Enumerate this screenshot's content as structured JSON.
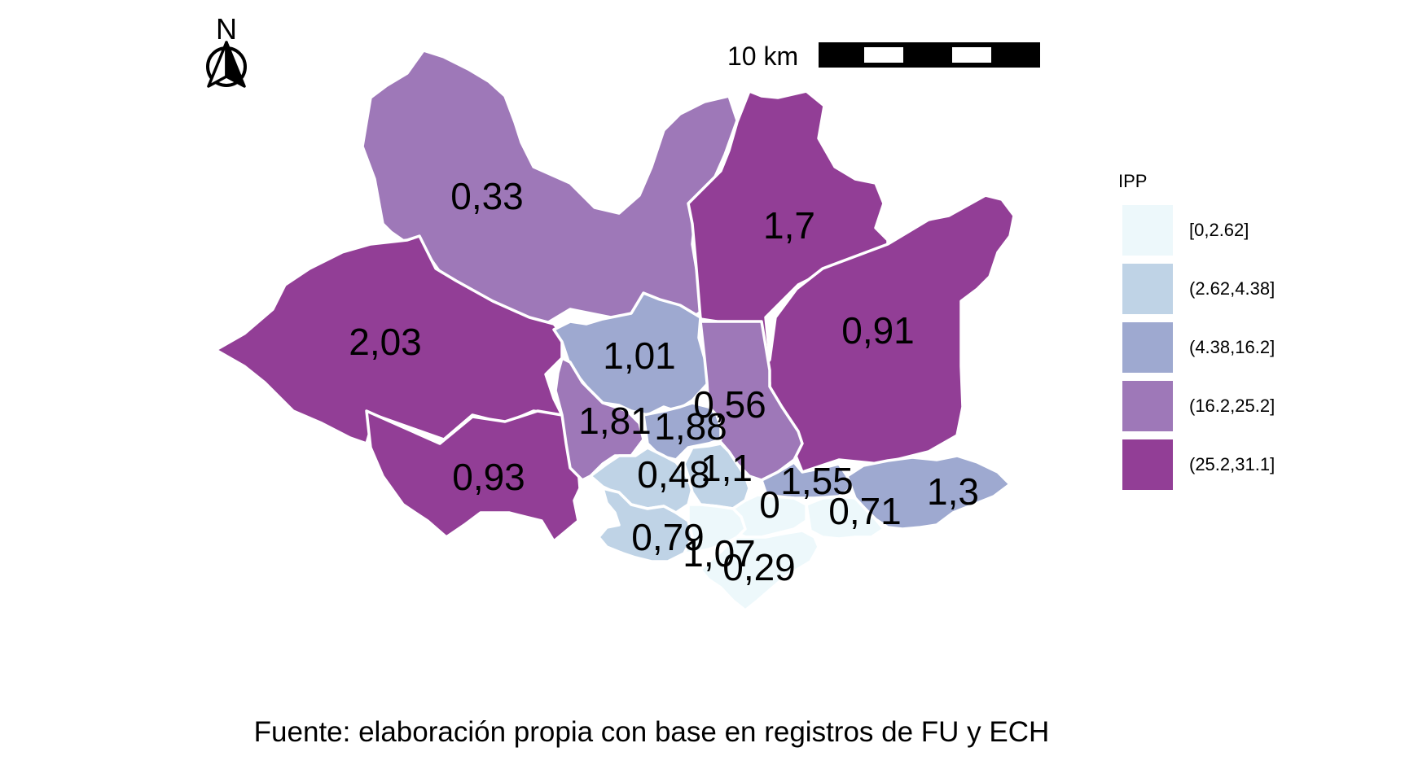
{
  "legend": {
    "title": "IPP",
    "classes": [
      {
        "label": "[0,2.62]",
        "color": "#EDF8FB"
      },
      {
        "label": "(2.62,4.38]",
        "color": "#BFD3E6"
      },
      {
        "label": "(4.38,16.2]",
        "color": "#9EA9D0"
      },
      {
        "label": "(16.2,25.2]",
        "color": "#9E78B8"
      },
      {
        "label": "(25.2,31.1]",
        "color": "#923E96"
      }
    ]
  },
  "scale_bar": {
    "label": "10 km"
  },
  "north_arrow": {
    "letter": "N"
  },
  "caption": "Fuente: elaboración propia con base en registros de FU y ECH",
  "regions": [
    {
      "id": "north-west",
      "value_label": "0,33",
      "class": 3
    },
    {
      "id": "north-center",
      "value_label": "1,7",
      "class": 4
    },
    {
      "id": "west",
      "value_label": "2,03",
      "class": 4
    },
    {
      "id": "east",
      "value_label": "0,91",
      "class": 4
    },
    {
      "id": "center",
      "value_label": "1,01",
      "class": 2
    },
    {
      "id": "center-east",
      "value_label": "0,56",
      "class": 3
    },
    {
      "id": "south-west",
      "value_label": "0,93",
      "class": 4
    },
    {
      "id": "center-west",
      "value_label": "1,81",
      "class": 3
    },
    {
      "id": "center-south",
      "value_label": "1,88",
      "class": 2
    },
    {
      "id": "south-center-left",
      "value_label": "0,48",
      "class": 1
    },
    {
      "id": "south-center",
      "value_label": "1,1",
      "class": 1
    },
    {
      "id": "south-east-inner",
      "value_label": "1,55",
      "class": 2
    },
    {
      "id": "south-center-low",
      "value_label": "0",
      "class": 0
    },
    {
      "id": "south-east-low",
      "value_label": "0,71",
      "class": 0
    },
    {
      "id": "far-east",
      "value_label": "1,3",
      "class": 2
    },
    {
      "id": "south-west-coast",
      "value_label": "0,79",
      "class": 1
    },
    {
      "id": "south-coast",
      "value_label": "1,07",
      "class": 0
    },
    {
      "id": "south-tip",
      "value_label": "0,29",
      "class": 0
    }
  ]
}
